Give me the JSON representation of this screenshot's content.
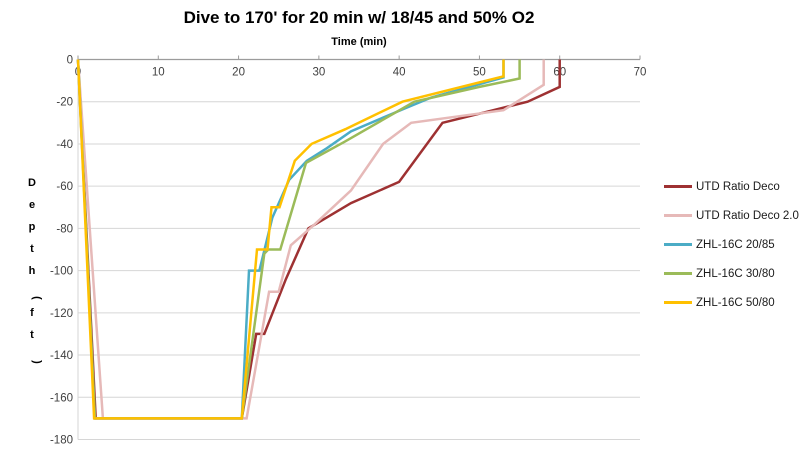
{
  "chart": {
    "background": "#ffffff",
    "axis_color": "#9b9b9b",
    "grid_color": "#d6d6d6",
    "tick_label_color": "#404040"
  },
  "chart_data": {
    "type": "line",
    "title": "Dive to 170' for 20 min w/ 18/45 and 50% O2",
    "xlabel": "Time (min)",
    "ylabel": "Depth (ft)",
    "xlim": [
      0,
      70
    ],
    "ylim": [
      -180,
      0
    ],
    "x_ticks": [
      0,
      10,
      20,
      30,
      40,
      50,
      60,
      70
    ],
    "y_ticks": [
      0,
      -20,
      -40,
      -60,
      -80,
      -100,
      -120,
      -140,
      -160,
      -180
    ],
    "grid": true,
    "legend_position": "right",
    "x_axis_position": "top",
    "series": [
      {
        "name": "UTD Ratio Deco",
        "color": "#9e3132",
        "points": [
          [
            0,
            0
          ],
          [
            2.2,
            -170
          ],
          [
            20.4,
            -170
          ],
          [
            22.2,
            -130
          ],
          [
            23.2,
            -130
          ],
          [
            25.9,
            -104
          ],
          [
            28.7,
            -80
          ],
          [
            34,
            -68
          ],
          [
            40,
            -58
          ],
          [
            45.4,
            -30
          ],
          [
            56,
            -20
          ],
          [
            60,
            -13
          ],
          [
            60,
            0
          ]
        ]
      },
      {
        "name": "UTD Ratio Deco 2.0",
        "color": "#e6b9b8",
        "points": [
          [
            0,
            0
          ],
          [
            3.1,
            -170
          ],
          [
            21,
            -170
          ],
          [
            23.8,
            -110
          ],
          [
            25,
            -110
          ],
          [
            26.5,
            -88
          ],
          [
            29.5,
            -78
          ],
          [
            34,
            -62
          ],
          [
            38,
            -40
          ],
          [
            41.5,
            -30
          ],
          [
            53,
            -24
          ],
          [
            58,
            -12
          ],
          [
            58,
            0
          ]
        ]
      },
      {
        "name": "ZHL-16C 20/85",
        "color": "#4bacc6",
        "points": [
          [
            0,
            0
          ],
          [
            2.1,
            -170
          ],
          [
            20.4,
            -170
          ],
          [
            21.3,
            -100
          ],
          [
            22.6,
            -100
          ],
          [
            24.2,
            -75
          ],
          [
            26.3,
            -57
          ],
          [
            28.5,
            -48
          ],
          [
            31,
            -42
          ],
          [
            34,
            -34
          ],
          [
            40.5,
            -23.5
          ],
          [
            44,
            -18
          ],
          [
            53,
            -8.5
          ],
          [
            53,
            0
          ]
        ]
      },
      {
        "name": "ZHL-16C 30/80",
        "color": "#9bbb59",
        "points": [
          [
            0,
            0
          ],
          [
            2.1,
            -170
          ],
          [
            20.4,
            -170
          ],
          [
            23.2,
            -92
          ],
          [
            23.7,
            -90
          ],
          [
            25.2,
            -90
          ],
          [
            28.4,
            -49
          ],
          [
            33.2,
            -39
          ],
          [
            41.9,
            -20
          ],
          [
            50,
            -13
          ],
          [
            55,
            -9
          ],
          [
            55,
            0
          ]
        ]
      },
      {
        "name": "ZHL-16C 50/80",
        "color": "#ffc000",
        "points": [
          [
            0,
            0
          ],
          [
            2.0,
            -170
          ],
          [
            20.4,
            -170
          ],
          [
            22.3,
            -90
          ],
          [
            23.6,
            -90
          ],
          [
            24.1,
            -70
          ],
          [
            25.1,
            -70
          ],
          [
            27,
            -48
          ],
          [
            29.1,
            -40
          ],
          [
            33.3,
            -33
          ],
          [
            40.4,
            -20
          ],
          [
            53,
            -8
          ],
          [
            53,
            0
          ]
        ]
      }
    ]
  }
}
